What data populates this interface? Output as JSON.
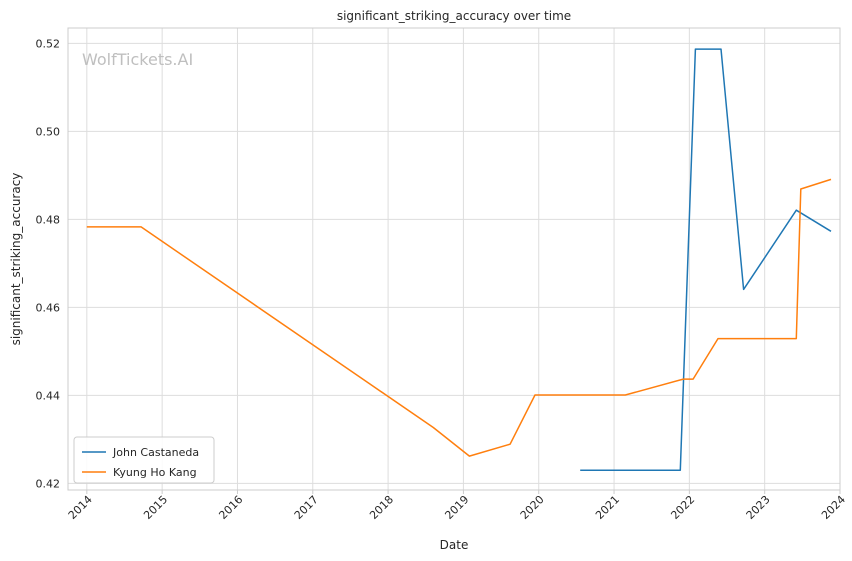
{
  "chart_data": {
    "type": "line",
    "title": "significant_striking_accuracy over time",
    "xlabel": "Date",
    "ylabel": "significant_striking_accuracy",
    "watermark": "WolfTickets.AI",
    "xlim": [
      2013.75,
      2024.0
    ],
    "ylim": [
      0.4185,
      0.5235
    ],
    "x_ticks": [
      2014,
      2015,
      2016,
      2017,
      2018,
      2019,
      2020,
      2021,
      2022,
      2023,
      2024
    ],
    "x_tick_labels": [
      "2014",
      "2015",
      "2016",
      "2017",
      "2018",
      "2019",
      "2020",
      "2021",
      "2022",
      "2023",
      "2024"
    ],
    "y_ticks": [
      0.42,
      0.44,
      0.46,
      0.48,
      0.5,
      0.52
    ],
    "y_tick_labels": [
      "0.42",
      "0.44",
      "0.46",
      "0.48",
      "0.50",
      "0.52"
    ],
    "grid": true,
    "legend_position": "lower-left",
    "series": [
      {
        "name": "John Castaneda",
        "color": "#1f77b4",
        "points": [
          [
            2020.55,
            0.423
          ],
          [
            2021.88,
            0.423
          ],
          [
            2022.08,
            0.5187
          ],
          [
            2022.42,
            0.5187
          ],
          [
            2022.72,
            0.4641
          ],
          [
            2023.42,
            0.4821
          ],
          [
            2023.88,
            0.4773
          ]
        ]
      },
      {
        "name": "Kyung Ho Kang",
        "color": "#ff7f0e",
        "points": [
          [
            2014.0,
            0.4783
          ],
          [
            2014.72,
            0.4783
          ],
          [
            2018.6,
            0.4327
          ],
          [
            2019.08,
            0.4262
          ],
          [
            2019.62,
            0.4289
          ],
          [
            2019.95,
            0.4401
          ],
          [
            2021.15,
            0.4401
          ],
          [
            2021.92,
            0.4437
          ],
          [
            2022.05,
            0.4437
          ],
          [
            2022.38,
            0.4529
          ],
          [
            2023.42,
            0.4529
          ],
          [
            2023.48,
            0.4869
          ],
          [
            2023.88,
            0.4891
          ]
        ]
      }
    ]
  }
}
